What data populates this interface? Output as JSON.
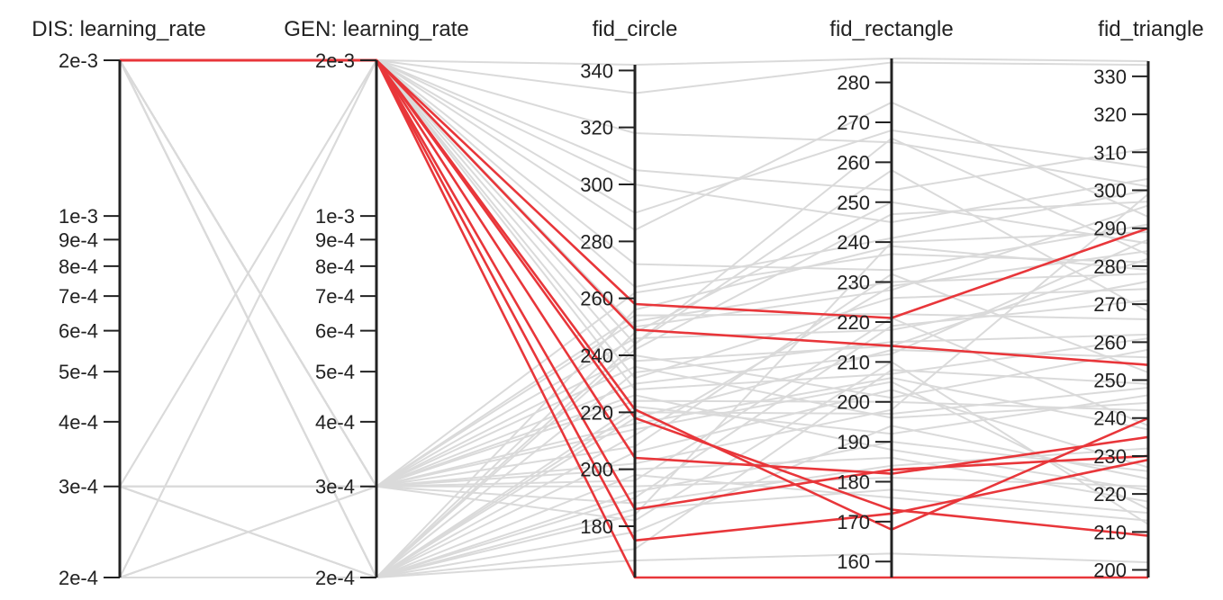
{
  "chart_data": {
    "type": "parallel_coordinates",
    "highlight_color": "#e8363a",
    "background_line_color": "#dadada",
    "axis_color": "#222222",
    "axes": [
      {
        "key": "dis_lr",
        "label": "DIS: learning_rate",
        "scale": "log",
        "range": [
          0.0002,
          0.002
        ],
        "ticks": [
          {
            "value": 0.002,
            "label": "2e-3"
          },
          {
            "value": 0.001,
            "label": "1e-3"
          },
          {
            "value": 0.0009,
            "label": "9e-4"
          },
          {
            "value": 0.0008,
            "label": "8e-4"
          },
          {
            "value": 0.0007,
            "label": "7e-4"
          },
          {
            "value": 0.0006,
            "label": "6e-4"
          },
          {
            "value": 0.0005,
            "label": "5e-4"
          },
          {
            "value": 0.0004,
            "label": "4e-4"
          },
          {
            "value": 0.0003,
            "label": "3e-4"
          },
          {
            "value": 0.0002,
            "label": "2e-4"
          }
        ]
      },
      {
        "key": "gen_lr",
        "label": "GEN: learning_rate",
        "scale": "log",
        "range": [
          0.0002,
          0.002
        ],
        "ticks": [
          {
            "value": 0.002,
            "label": "2e-3"
          },
          {
            "value": 0.001,
            "label": "1e-3"
          },
          {
            "value": 0.0009,
            "label": "9e-4"
          },
          {
            "value": 0.0008,
            "label": "8e-4"
          },
          {
            "value": 0.0007,
            "label": "7e-4"
          },
          {
            "value": 0.0006,
            "label": "6e-4"
          },
          {
            "value": 0.0005,
            "label": "5e-4"
          },
          {
            "value": 0.0004,
            "label": "4e-4"
          },
          {
            "value": 0.0003,
            "label": "3e-4"
          },
          {
            "value": 0.0002,
            "label": "2e-4"
          }
        ]
      },
      {
        "key": "fid_circle",
        "label": "fid_circle",
        "scale": "linear",
        "range": [
          162,
          342
        ],
        "ticks": [
          {
            "value": 340,
            "label": "340"
          },
          {
            "value": 320,
            "label": "320"
          },
          {
            "value": 300,
            "label": "300"
          },
          {
            "value": 280,
            "label": "280"
          },
          {
            "value": 260,
            "label": "260"
          },
          {
            "value": 240,
            "label": "240"
          },
          {
            "value": 220,
            "label": "220"
          },
          {
            "value": 200,
            "label": "200"
          },
          {
            "value": 180,
            "label": "180"
          }
        ]
      },
      {
        "key": "fid_rectangle",
        "label": "fid_rectangle",
        "scale": "linear",
        "range": [
          156,
          286
        ],
        "ticks": [
          {
            "value": 280,
            "label": "280"
          },
          {
            "value": 270,
            "label": "270"
          },
          {
            "value": 260,
            "label": "260"
          },
          {
            "value": 250,
            "label": "250"
          },
          {
            "value": 240,
            "label": "240"
          },
          {
            "value": 230,
            "label": "230"
          },
          {
            "value": 220,
            "label": "220"
          },
          {
            "value": 210,
            "label": "210"
          },
          {
            "value": 200,
            "label": "200"
          },
          {
            "value": 190,
            "label": "190"
          },
          {
            "value": 180,
            "label": "180"
          },
          {
            "value": 170,
            "label": "170"
          },
          {
            "value": 160,
            "label": "160"
          }
        ]
      },
      {
        "key": "fid_triangle",
        "label": "fid_triangle",
        "scale": "linear",
        "range": [
          198,
          334
        ],
        "ticks": [
          {
            "value": 330,
            "label": "330"
          },
          {
            "value": 320,
            "label": "320"
          },
          {
            "value": 310,
            "label": "310"
          },
          {
            "value": 300,
            "label": "300"
          },
          {
            "value": 290,
            "label": "290"
          },
          {
            "value": 280,
            "label": "280"
          },
          {
            "value": 270,
            "label": "270"
          },
          {
            "value": 260,
            "label": "260"
          },
          {
            "value": 250,
            "label": "250"
          },
          {
            "value": 240,
            "label": "240"
          },
          {
            "value": 230,
            "label": "230"
          },
          {
            "value": 220,
            "label": "220"
          },
          {
            "value": 210,
            "label": "210"
          },
          {
            "value": 200,
            "label": "200"
          }
        ]
      }
    ],
    "highlighted_series": [
      {
        "values": [
          0.002,
          0.002,
          258,
          221,
          290
        ]
      },
      {
        "values": [
          0.002,
          0.002,
          249,
          214,
          254
        ]
      },
      {
        "values": [
          0.002,
          0.002,
          221,
          168,
          240
        ]
      },
      {
        "values": [
          0.002,
          0.002,
          218,
          173,
          209
        ]
      },
      {
        "values": [
          0.002,
          0.002,
          204,
          182,
          235
        ]
      },
      {
        "values": [
          0.002,
          0.002,
          186,
          183,
          230
        ]
      },
      {
        "values": [
          0.002,
          0.002,
          175,
          172,
          229
        ]
      },
      {
        "values": [
          0.002,
          0.002,
          162,
          156,
          198
        ]
      }
    ],
    "background_series": [
      {
        "values": [
          0.002,
          0.002,
          342,
          286,
          334
        ]
      },
      {
        "values": [
          0.002,
          0.002,
          332,
          285,
          333
        ]
      },
      {
        "values": [
          0.002,
          0.002,
          305,
          253,
          311
        ]
      },
      {
        "values": [
          0.002,
          0.002,
          290,
          268,
          306
        ]
      },
      {
        "values": [
          0.002,
          0.002,
          264,
          241,
          300
        ]
      },
      {
        "values": [
          0.002,
          0.002,
          250,
          228,
          296
        ]
      },
      {
        "values": [
          0.002,
          0.002,
          238,
          214,
          282
        ]
      },
      {
        "values": [
          0.002,
          0.002,
          232,
          226,
          274
        ]
      },
      {
        "values": [
          0.002,
          0.002,
          244,
          258,
          268
        ]
      },
      {
        "values": [
          0.002,
          0.002,
          228,
          207,
          261
        ]
      },
      {
        "values": [
          0.002,
          0.0003,
          262,
          237,
          281
        ]
      },
      {
        "values": [
          0.002,
          0.0003,
          246,
          218,
          276
        ]
      },
      {
        "values": [
          0.002,
          0.0003,
          240,
          201,
          258
        ]
      },
      {
        "values": [
          0.002,
          0.0003,
          236,
          196,
          244
        ]
      },
      {
        "values": [
          0.002,
          0.0003,
          230,
          212,
          287
        ]
      },
      {
        "values": [
          0.002,
          0.0003,
          226,
          188,
          221
        ]
      },
      {
        "values": [
          0.002,
          0.0003,
          214,
          205,
          216
        ]
      },
      {
        "values": [
          0.002,
          0.0003,
          208,
          232,
          252
        ]
      },
      {
        "values": [
          0.002,
          0.0003,
          202,
          198,
          299
        ]
      },
      {
        "values": [
          0.002,
          0.0003,
          196,
          221,
          238
        ]
      },
      {
        "values": [
          0.002,
          0.0003,
          188,
          184,
          232
        ]
      },
      {
        "values": [
          0.002,
          0.0003,
          182,
          210,
          212
        ]
      },
      {
        "values": [
          0.002,
          0.0002,
          256,
          239,
          279
        ]
      },
      {
        "values": [
          0.002,
          0.0002,
          242,
          247,
          297
        ]
      },
      {
        "values": [
          0.002,
          0.0002,
          234,
          215,
          262
        ]
      },
      {
        "values": [
          0.002,
          0.0002,
          222,
          192,
          246
        ]
      },
      {
        "values": [
          0.002,
          0.0002,
          212,
          229,
          284
        ]
      },
      {
        "values": [
          0.002,
          0.0002,
          206,
          203,
          227
        ]
      },
      {
        "values": [
          0.002,
          0.0002,
          198,
          176,
          213
        ]
      },
      {
        "values": [
          0.002,
          0.0002,
          190,
          219,
          271
        ]
      },
      {
        "values": [
          0.002,
          0.0002,
          184,
          240,
          289
        ]
      },
      {
        "values": [
          0.002,
          0.0002,
          178,
          194,
          224
        ]
      },
      {
        "values": [
          0.002,
          0.0002,
          172,
          208,
          249
        ]
      },
      {
        "values": [
          0.0003,
          0.002,
          300,
          245,
          303
        ]
      },
      {
        "values": [
          0.0003,
          0.002,
          272,
          233,
          291
        ]
      },
      {
        "values": [
          0.0003,
          0.0003,
          254,
          222,
          266
        ]
      },
      {
        "values": [
          0.0003,
          0.0003,
          224,
          200,
          242
        ]
      },
      {
        "values": [
          0.0003,
          0.0003,
          200,
          186,
          218
        ]
      },
      {
        "values": [
          0.0003,
          0.0002,
          244,
          266,
          283
        ]
      },
      {
        "values": [
          0.0003,
          0.0002,
          218,
          213,
          256
        ]
      },
      {
        "values": [
          0.0003,
          0.0002,
          192,
          190,
          226
        ]
      },
      {
        "values": [
          0.0002,
          0.002,
          318,
          265,
          301
        ]
      },
      {
        "values": [
          0.0002,
          0.002,
          284,
          275,
          293
        ]
      },
      {
        "values": [
          0.0002,
          0.0003,
          252,
          230,
          278
        ]
      },
      {
        "values": [
          0.0002,
          0.0003,
          216,
          206,
          237
        ]
      },
      {
        "values": [
          0.0002,
          0.0003,
          194,
          181,
          222
        ]
      },
      {
        "values": [
          0.0002,
          0.0002,
          248,
          250,
          286
        ]
      },
      {
        "values": [
          0.0002,
          0.0002,
          220,
          197,
          248
        ]
      },
      {
        "values": [
          0.0002,
          0.0002,
          186,
          178,
          215
        ]
      },
      {
        "values": [
          0.0002,
          0.0002,
          168,
          162,
          202
        ]
      }
    ]
  }
}
